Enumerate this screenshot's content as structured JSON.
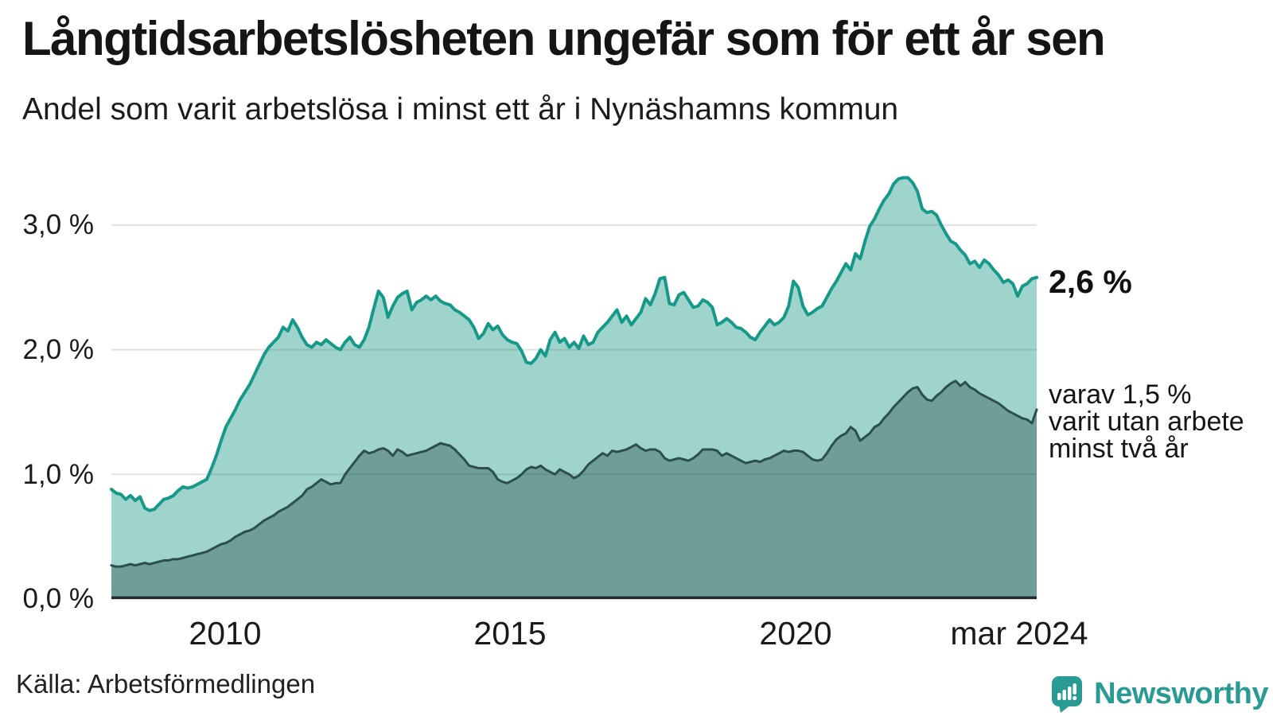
{
  "header": {
    "title": "Långtidsarbetslösheten ungefär som för ett år sen",
    "subtitle": "Andel som varit arbetslösa i minst ett år i Nynäshamns kommun"
  },
  "chart": {
    "y_ticks": [
      "3,0 %",
      "2,0 %",
      "1,0 %",
      "0,0 %"
    ],
    "x_ticks": [
      "2010",
      "2015",
      "2020",
      "mar 2024"
    ],
    "end_label_total": "2,6 %",
    "annotation_lines": [
      "varav 1,5 %",
      "varit utan arbete",
      "minst två år"
    ]
  },
  "footer": {
    "source": "Källa: Arbetsförmedlingen",
    "brand": "Newsworthy"
  },
  "colors": {
    "total_line": "#17998a",
    "total_fill": "#9fd4cc",
    "subset_line": "#2d4f4a",
    "subset_fill": "#6f9d97",
    "gridline": "rgba(50,75,75,0.16)",
    "baseline": "#212b2e",
    "brand_teal": "#2a9b94",
    "text": "#1a1a1a"
  },
  "chart_data": {
    "type": "area",
    "title": "Långtidsarbetslösheten ungefär som för ett år sen",
    "subtitle": "Andel som varit arbetslösa i minst ett år i Nynäshamns kommun",
    "unit": "%",
    "x_start_year": 2008,
    "x_end_label": "mar 2024",
    "interval": "monthly",
    "ylim": [
      0,
      3.465
    ],
    "grid_percent": [
      1,
      2,
      3
    ],
    "x_tick_years": [
      2010,
      2015,
      2020,
      2024.17
    ],
    "end_values": {
      "total": 2.6,
      "subset": 1.5
    },
    "series": [
      {
        "name": "Andel arbetslösa minst ett år",
        "line_color": "#17998a",
        "fill_color": "#9fd4cc",
        "values": [
          0.88,
          0.85,
          0.84,
          0.8,
          0.83,
          0.79,
          0.82,
          0.73,
          0.71,
          0.72,
          0.76,
          0.8,
          0.81,
          0.83,
          0.87,
          0.9,
          0.89,
          0.9,
          0.92,
          0.94,
          0.96,
          1.05,
          1.15,
          1.27,
          1.38,
          1.45,
          1.52,
          1.6,
          1.66,
          1.72,
          1.8,
          1.88,
          1.96,
          2.02,
          2.06,
          2.1,
          2.18,
          2.15,
          2.24,
          2.18,
          2.1,
          2.04,
          2.02,
          2.06,
          2.04,
          2.08,
          2.05,
          2.02,
          2.0,
          2.06,
          2.1,
          2.04,
          2.02,
          2.08,
          2.18,
          2.33,
          2.47,
          2.42,
          2.26,
          2.35,
          2.42,
          2.45,
          2.47,
          2.32,
          2.38,
          2.4,
          2.43,
          2.4,
          2.43,
          2.39,
          2.37,
          2.36,
          2.32,
          2.3,
          2.27,
          2.24,
          2.18,
          2.09,
          2.13,
          2.21,
          2.16,
          2.19,
          2.12,
          2.08,
          2.06,
          2.05,
          1.99,
          1.9,
          1.89,
          1.93,
          2.0,
          1.95,
          2.08,
          2.14,
          2.06,
          2.09,
          2.02,
          2.06,
          2.01,
          2.11,
          2.04,
          2.06,
          2.14,
          2.18,
          2.22,
          2.27,
          2.32,
          2.22,
          2.27,
          2.2,
          2.25,
          2.3,
          2.41,
          2.36,
          2.45,
          2.57,
          2.58,
          2.37,
          2.36,
          2.44,
          2.46,
          2.4,
          2.34,
          2.35,
          2.4,
          2.38,
          2.34,
          2.2,
          2.22,
          2.25,
          2.22,
          2.18,
          2.17,
          2.14,
          2.1,
          2.08,
          2.14,
          2.19,
          2.24,
          2.2,
          2.22,
          2.26,
          2.35,
          2.55,
          2.5,
          2.35,
          2.28,
          2.3,
          2.33,
          2.35,
          2.42,
          2.49,
          2.55,
          2.62,
          2.69,
          2.64,
          2.77,
          2.73,
          2.87,
          2.99,
          3.05,
          3.13,
          3.2,
          3.25,
          3.33,
          3.37,
          3.38,
          3.38,
          3.34,
          3.27,
          3.13,
          3.1,
          3.11,
          3.08,
          3.0,
          2.93,
          2.87,
          2.85,
          2.8,
          2.76,
          2.69,
          2.71,
          2.66,
          2.72,
          2.69,
          2.64,
          2.6,
          2.54,
          2.56,
          2.53,
          2.43,
          2.51,
          2.53,
          2.57,
          2.58
        ]
      },
      {
        "name": "varav utan arbete minst två år",
        "line_color": "#2d4f4a",
        "fill_color": "#6f9d97",
        "values": [
          0.27,
          0.26,
          0.26,
          0.27,
          0.28,
          0.27,
          0.28,
          0.29,
          0.28,
          0.29,
          0.3,
          0.31,
          0.31,
          0.32,
          0.32,
          0.33,
          0.34,
          0.35,
          0.36,
          0.37,
          0.38,
          0.4,
          0.42,
          0.44,
          0.45,
          0.47,
          0.5,
          0.52,
          0.54,
          0.55,
          0.57,
          0.6,
          0.63,
          0.65,
          0.67,
          0.7,
          0.72,
          0.74,
          0.77,
          0.8,
          0.83,
          0.88,
          0.9,
          0.93,
          0.96,
          0.94,
          0.92,
          0.93,
          0.93,
          1.0,
          1.05,
          1.1,
          1.15,
          1.19,
          1.17,
          1.18,
          1.2,
          1.21,
          1.19,
          1.15,
          1.2,
          1.18,
          1.15,
          1.16,
          1.17,
          1.18,
          1.19,
          1.21,
          1.23,
          1.25,
          1.24,
          1.23,
          1.2,
          1.16,
          1.12,
          1.07,
          1.06,
          1.05,
          1.05,
          1.05,
          1.02,
          0.96,
          0.94,
          0.93,
          0.95,
          0.97,
          1.0,
          1.04,
          1.06,
          1.05,
          1.07,
          1.04,
          1.02,
          1.0,
          1.04,
          1.02,
          1.0,
          0.97,
          0.99,
          1.03,
          1.08,
          1.11,
          1.14,
          1.17,
          1.15,
          1.19,
          1.18,
          1.19,
          1.2,
          1.22,
          1.24,
          1.21,
          1.19,
          1.2,
          1.2,
          1.18,
          1.13,
          1.11,
          1.12,
          1.13,
          1.12,
          1.11,
          1.13,
          1.16,
          1.2,
          1.2,
          1.2,
          1.19,
          1.15,
          1.17,
          1.15,
          1.13,
          1.11,
          1.09,
          1.1,
          1.11,
          1.1,
          1.12,
          1.13,
          1.15,
          1.17,
          1.19,
          1.18,
          1.19,
          1.19,
          1.18,
          1.15,
          1.12,
          1.11,
          1.12,
          1.17,
          1.23,
          1.28,
          1.31,
          1.33,
          1.38,
          1.35,
          1.27,
          1.3,
          1.33,
          1.38,
          1.4,
          1.45,
          1.49,
          1.54,
          1.58,
          1.62,
          1.66,
          1.69,
          1.7,
          1.64,
          1.6,
          1.59,
          1.63,
          1.66,
          1.7,
          1.73,
          1.75,
          1.71,
          1.74,
          1.7,
          1.68,
          1.65,
          1.63,
          1.61,
          1.59,
          1.57,
          1.54,
          1.51,
          1.49,
          1.47,
          1.45,
          1.44,
          1.41,
          1.52
        ]
      }
    ]
  }
}
